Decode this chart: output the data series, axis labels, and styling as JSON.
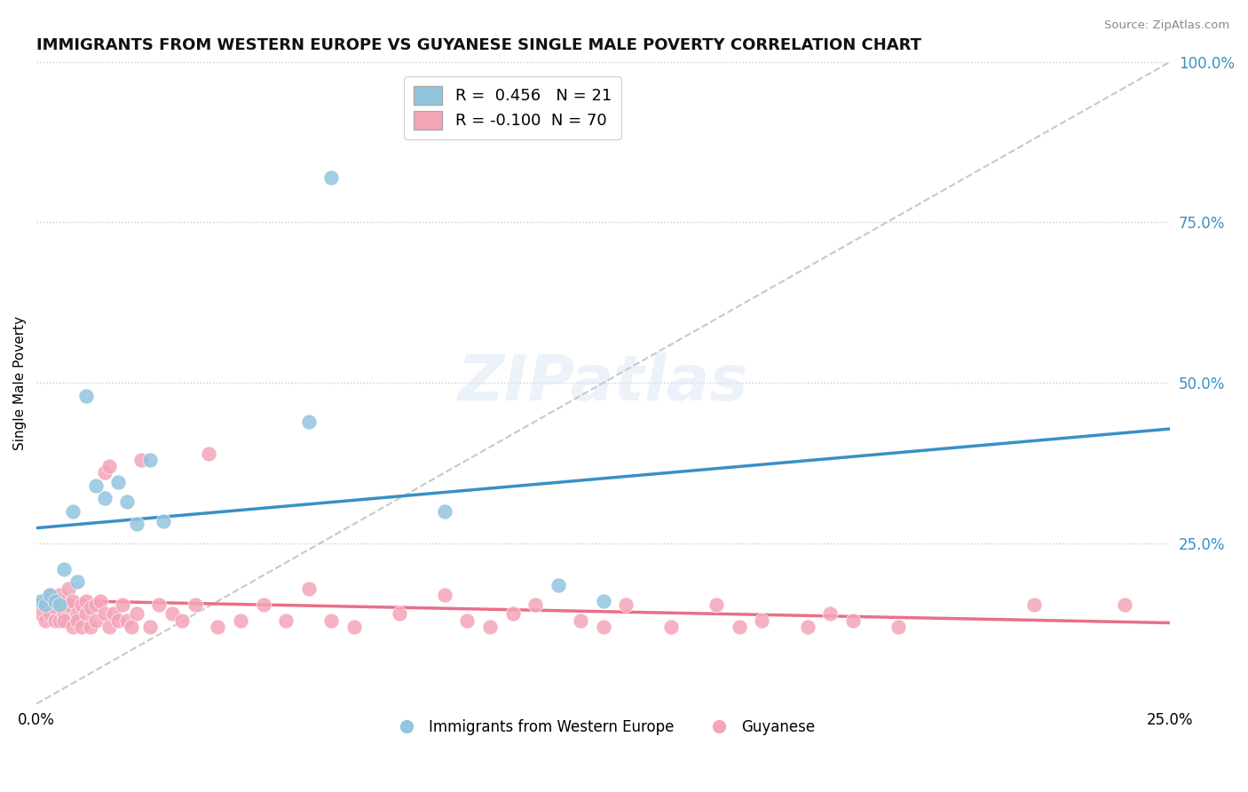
{
  "title": "IMMIGRANTS FROM WESTERN EUROPE VS GUYANESE SINGLE MALE POVERTY CORRELATION CHART",
  "source": "Source: ZipAtlas.com",
  "ylabel": "Single Male Poverty",
  "blue_R": 0.456,
  "blue_N": 21,
  "pink_R": -0.1,
  "pink_N": 70,
  "blue_color": "#92c5de",
  "pink_color": "#f4a5b8",
  "blue_line_color": "#3a8fc7",
  "pink_line_color": "#e8708a",
  "trendline_ref_color": "#c8c8c8",
  "blue_x": [
    0.001,
    0.002,
    0.003,
    0.004,
    0.005,
    0.006,
    0.008,
    0.009,
    0.011,
    0.013,
    0.015,
    0.018,
    0.02,
    0.022,
    0.025,
    0.028,
    0.06,
    0.065,
    0.09,
    0.115,
    0.125
  ],
  "blue_y": [
    0.16,
    0.155,
    0.17,
    0.16,
    0.155,
    0.21,
    0.3,
    0.19,
    0.48,
    0.34,
    0.32,
    0.345,
    0.315,
    0.28,
    0.38,
    0.285,
    0.44,
    0.82,
    0.3,
    0.185,
    0.16
  ],
  "pink_x": [
    0.001,
    0.002,
    0.002,
    0.003,
    0.003,
    0.004,
    0.004,
    0.005,
    0.005,
    0.005,
    0.006,
    0.006,
    0.007,
    0.007,
    0.008,
    0.008,
    0.009,
    0.009,
    0.01,
    0.01,
    0.011,
    0.011,
    0.012,
    0.012,
    0.013,
    0.013,
    0.014,
    0.015,
    0.015,
    0.016,
    0.016,
    0.017,
    0.018,
    0.019,
    0.02,
    0.021,
    0.022,
    0.023,
    0.025,
    0.027,
    0.03,
    0.032,
    0.035,
    0.038,
    0.04,
    0.045,
    0.05,
    0.055,
    0.06,
    0.065,
    0.07,
    0.08,
    0.09,
    0.095,
    0.1,
    0.105,
    0.11,
    0.12,
    0.125,
    0.13,
    0.14,
    0.15,
    0.155,
    0.16,
    0.17,
    0.175,
    0.18,
    0.19,
    0.22,
    0.24
  ],
  "pink_y": [
    0.14,
    0.13,
    0.16,
    0.14,
    0.17,
    0.15,
    0.13,
    0.13,
    0.16,
    0.17,
    0.14,
    0.13,
    0.155,
    0.18,
    0.12,
    0.16,
    0.14,
    0.13,
    0.155,
    0.12,
    0.14,
    0.16,
    0.15,
    0.12,
    0.13,
    0.155,
    0.16,
    0.36,
    0.14,
    0.37,
    0.12,
    0.14,
    0.13,
    0.155,
    0.13,
    0.12,
    0.14,
    0.38,
    0.12,
    0.155,
    0.14,
    0.13,
    0.155,
    0.39,
    0.12,
    0.13,
    0.155,
    0.13,
    0.18,
    0.13,
    0.12,
    0.14,
    0.17,
    0.13,
    0.12,
    0.14,
    0.155,
    0.13,
    0.12,
    0.155,
    0.12,
    0.155,
    0.12,
    0.13,
    0.12,
    0.14,
    0.13,
    0.12,
    0.155,
    0.155
  ],
  "xlim": [
    0.0,
    0.25
  ],
  "ylim": [
    0.0,
    1.0
  ],
  "right_yticks": [
    0.25,
    0.5,
    0.75,
    1.0
  ],
  "right_yticklabels": [
    "25.0%",
    "50.0%",
    "75.0%",
    "100.0%"
  ],
  "xticks": [
    0.0,
    0.25
  ],
  "xticklabels": [
    "0.0%",
    "25.0%"
  ]
}
